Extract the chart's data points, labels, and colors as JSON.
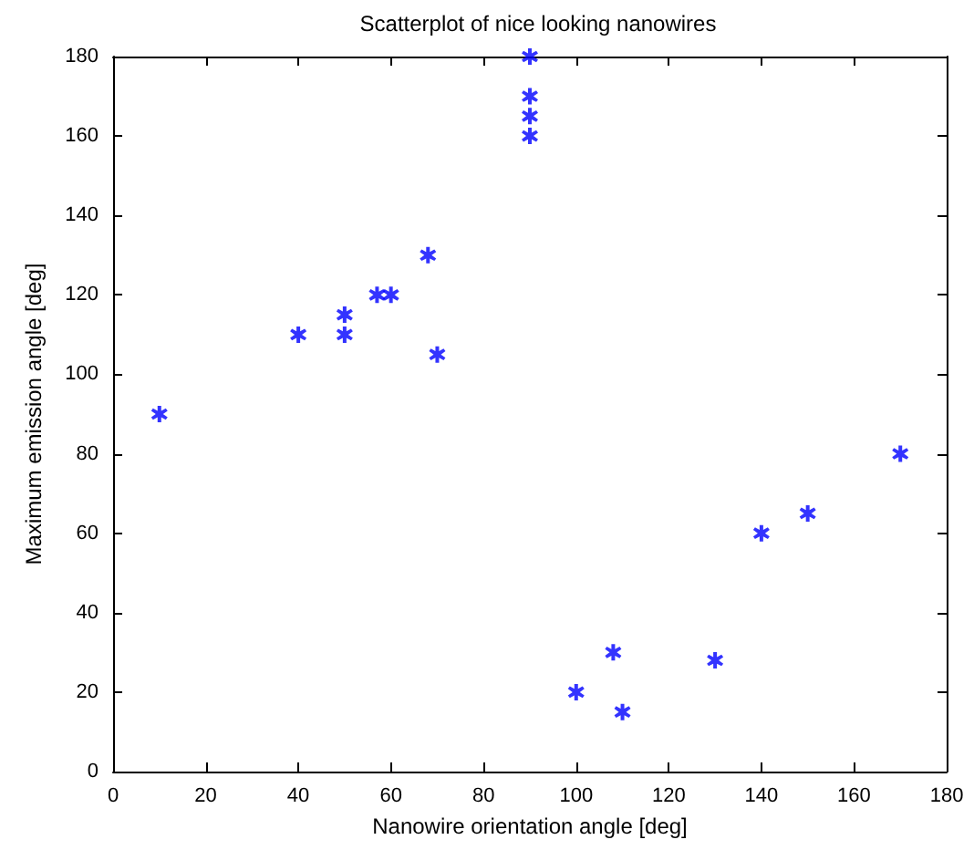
{
  "chart_data": {
    "type": "scatter",
    "title": "Scatterplot of nice looking nanowires",
    "xlabel": "Nanowire orientation angle [deg]",
    "ylabel": "Maximum emission angle [deg]",
    "x": [
      10,
      40,
      50,
      50,
      57,
      60,
      68,
      70,
      90,
      90,
      90,
      90,
      100,
      108,
      110,
      130,
      140,
      150,
      170
    ],
    "series": [
      {
        "color": "#0000ff",
        "values": [
          90,
          110,
          115,
          110,
          120,
          120,
          130,
          105,
          180,
          170,
          165,
          160,
          20,
          30,
          15,
          28,
          60,
          65,
          80
        ]
      }
    ],
    "xlim": [
      0,
      180
    ],
    "xticks": [
      0,
      20,
      40,
      60,
      80,
      100,
      120,
      140,
      160,
      180
    ],
    "ylim": [
      0,
      180
    ],
    "yticks": [
      0,
      20,
      40,
      60,
      80,
      100,
      120,
      140,
      160,
      180
    ],
    "marker": "star"
  }
}
